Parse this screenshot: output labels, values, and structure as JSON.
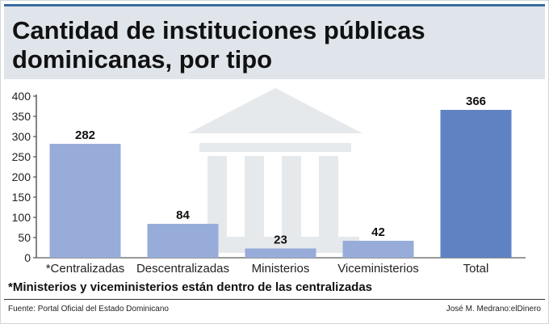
{
  "header": {
    "title_line1": "Cantidad de instituciones públicas",
    "title_line2": "dominicanas, por tipo"
  },
  "chart_data": {
    "type": "bar",
    "categories": [
      "*Centralizadas",
      "Descentralizadas",
      "Ministerios",
      "Viceministerios",
      "Total"
    ],
    "values": [
      282,
      84,
      23,
      42,
      366
    ],
    "ylim": [
      0,
      400
    ],
    "yticks": [
      0,
      50,
      100,
      150,
      200,
      250,
      300,
      350,
      400
    ],
    "grid": false,
    "colors": {
      "bar": "#97acd9",
      "total_bar": "#5f83c2",
      "axis": "#333333",
      "watermark": "#e6e9ec"
    }
  },
  "footer": {
    "note": "*Ministerios y viceministerios están dentro de las centralizadas",
    "source": "Fuente: Portal Oficial del Estado Dominicano",
    "credit": "José M. Medrano:elDinero"
  }
}
